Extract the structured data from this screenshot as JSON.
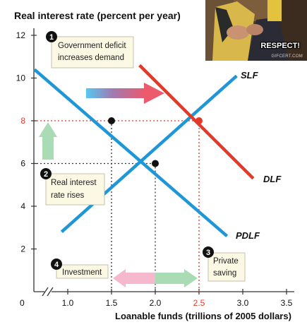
{
  "chart_data": {
    "type": "line",
    "title": "Real interest rate (percent per year)",
    "xlabel": "Loanable funds (trillions of 2005 dollars)",
    "ylabel": "Real interest rate (percent per year)",
    "xlim": [
      0.7,
      3.5
    ],
    "ylim": [
      0,
      12
    ],
    "x_origin_label": "0",
    "x_ticks": [
      1.0,
      1.5,
      2.0,
      2.5,
      3.0,
      3.5
    ],
    "x_tick_labels": [
      "1.0",
      "1.5",
      "2.0",
      "2.5",
      "3.0",
      "3.5"
    ],
    "y_ticks": [
      2,
      4,
      6,
      8,
      10,
      12
    ],
    "y_tick_labels": [
      "2",
      "4",
      "6",
      "8",
      "10",
      "12"
    ],
    "highlight_tick": {
      "x": "2.5",
      "y": "8"
    },
    "series": [
      {
        "name": "SLF",
        "color": "#1e96d8",
        "x": [
          0.93,
          2.93
        ],
        "y": [
          2.8,
          10.1
        ]
      },
      {
        "name": "PDLF",
        "color": "#1e96d8",
        "x": [
          0.62,
          2.82
        ],
        "y": [
          10.4,
          2.6
        ]
      },
      {
        "name": "DLF",
        "color": "#e23a2a",
        "x": [
          1.82,
          3.12
        ],
        "y": [
          10.6,
          5.3
        ]
      }
    ],
    "equilibria": [
      {
        "label": "initial",
        "x": 2.0,
        "y": 6,
        "color": "#111111"
      },
      {
        "label": "new",
        "x": 2.5,
        "y": 8,
        "color": "#e23a2a"
      },
      {
        "label": "PDLF at new rate",
        "x": 1.5,
        "y": 8,
        "color": "#111111"
      }
    ],
    "annotations": [
      {
        "number": "1",
        "text": "Government deficit increases demand"
      },
      {
        "number": "2",
        "text": "Real interest rate rises"
      },
      {
        "number": "3",
        "text": "Private saving"
      },
      {
        "number": "4",
        "text": "Investment"
      }
    ],
    "grid": false
  },
  "photo": {
    "caption": "RESPECT!",
    "watermark": "GIFCERT.COM"
  }
}
